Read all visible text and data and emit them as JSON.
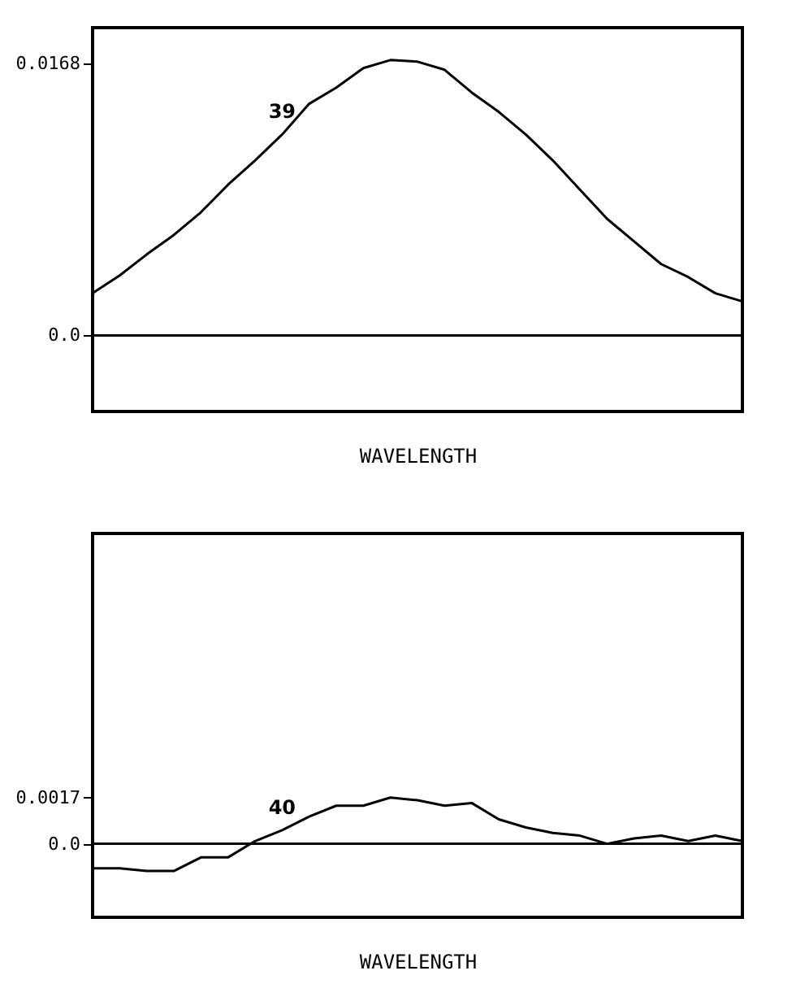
{
  "chart_data": [
    {
      "type": "line",
      "xlabel": "WAVELENGTH",
      "categories": [
        null,
        null,
        null,
        null,
        null,
        null,
        null,
        null,
        null,
        null,
        null,
        null,
        null,
        null,
        null,
        null,
        null,
        null,
        null,
        null,
        null,
        null,
        null,
        null,
        null
      ],
      "series": [
        {
          "name": "39",
          "color": "#000000",
          "values": [
            0.0026,
            0.0037,
            0.005,
            0.0062,
            0.0076,
            0.0093,
            0.0108,
            0.0124,
            0.0143,
            0.0153,
            0.0165,
            0.017,
            0.0169,
            0.0164,
            0.015,
            0.0138,
            0.0124,
            0.0108,
            0.009,
            0.0072,
            0.0058,
            0.0044,
            0.0036,
            0.0026,
            0.0021
          ]
        }
      ],
      "ylim": [
        -0.0047,
        0.019
      ],
      "yticks": [
        {
          "value": 0,
          "label": "0.0"
        },
        0.0168
      ],
      "ref_lines": [
        {
          "axis": "y",
          "value": 0
        }
      ],
      "tick_labels": "y",
      "grid": false
    },
    {
      "type": "line",
      "xlabel": "WAVELENGTH",
      "categories": [
        null,
        null,
        null,
        null,
        null,
        null,
        null,
        null,
        null,
        null,
        null,
        null,
        null,
        null,
        null,
        null,
        null,
        null,
        null,
        null,
        null,
        null,
        null,
        null,
        null
      ],
      "series": [
        {
          "name": "40",
          "color": "#000000",
          "values": [
            -0.0009,
            -0.0009,
            -0.001,
            -0.001,
            -0.0005,
            -0.0005,
            0.0001,
            0.0005,
            0.001,
            0.0014,
            0.0014,
            0.0017,
            0.0016,
            0.0014,
            0.0015,
            0.0009,
            0.0006,
            0.0004,
            0.0003,
            0.0,
            0.0002,
            0.0003,
            0.0001,
            0.0003,
            0.0001
          ]
        }
      ],
      "ylim": [
        -0.0027,
        0.0114
      ],
      "yticks": [
        {
          "value": 0,
          "label": "0.0"
        },
        0.0017
      ],
      "ref_lines": [
        {
          "axis": "y",
          "value": 0
        }
      ],
      "tick_labels": "y",
      "grid": false
    }
  ]
}
